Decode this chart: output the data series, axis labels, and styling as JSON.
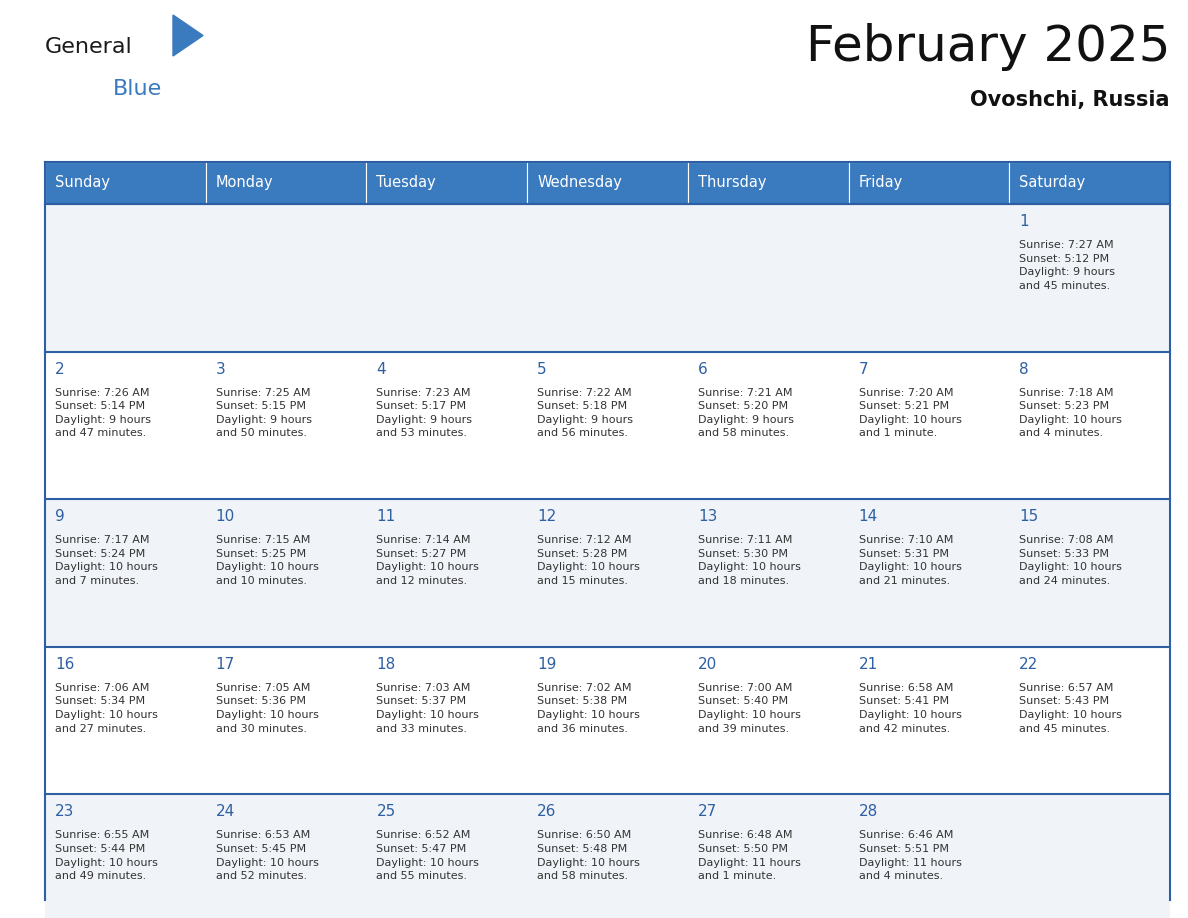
{
  "title": "February 2025",
  "subtitle": "Ovoshchi, Russia",
  "header_color": "#3a7abf",
  "header_text_color": "#ffffff",
  "cell_bg_even": "#f0f4f8",
  "cell_bg_odd": "#ffffff",
  "border_color": "#2e5fa3",
  "day_number_color": "#2e5fa3",
  "text_color": "#333333",
  "days_of_week": [
    "Sunday",
    "Monday",
    "Tuesday",
    "Wednesday",
    "Thursday",
    "Friday",
    "Saturday"
  ],
  "weeks": [
    [
      {
        "day": null,
        "info": null
      },
      {
        "day": null,
        "info": null
      },
      {
        "day": null,
        "info": null
      },
      {
        "day": null,
        "info": null
      },
      {
        "day": null,
        "info": null
      },
      {
        "day": null,
        "info": null
      },
      {
        "day": 1,
        "info": "Sunrise: 7:27 AM\nSunset: 5:12 PM\nDaylight: 9 hours\nand 45 minutes."
      }
    ],
    [
      {
        "day": 2,
        "info": "Sunrise: 7:26 AM\nSunset: 5:14 PM\nDaylight: 9 hours\nand 47 minutes."
      },
      {
        "day": 3,
        "info": "Sunrise: 7:25 AM\nSunset: 5:15 PM\nDaylight: 9 hours\nand 50 minutes."
      },
      {
        "day": 4,
        "info": "Sunrise: 7:23 AM\nSunset: 5:17 PM\nDaylight: 9 hours\nand 53 minutes."
      },
      {
        "day": 5,
        "info": "Sunrise: 7:22 AM\nSunset: 5:18 PM\nDaylight: 9 hours\nand 56 minutes."
      },
      {
        "day": 6,
        "info": "Sunrise: 7:21 AM\nSunset: 5:20 PM\nDaylight: 9 hours\nand 58 minutes."
      },
      {
        "day": 7,
        "info": "Sunrise: 7:20 AM\nSunset: 5:21 PM\nDaylight: 10 hours\nand 1 minute."
      },
      {
        "day": 8,
        "info": "Sunrise: 7:18 AM\nSunset: 5:23 PM\nDaylight: 10 hours\nand 4 minutes."
      }
    ],
    [
      {
        "day": 9,
        "info": "Sunrise: 7:17 AM\nSunset: 5:24 PM\nDaylight: 10 hours\nand 7 minutes."
      },
      {
        "day": 10,
        "info": "Sunrise: 7:15 AM\nSunset: 5:25 PM\nDaylight: 10 hours\nand 10 minutes."
      },
      {
        "day": 11,
        "info": "Sunrise: 7:14 AM\nSunset: 5:27 PM\nDaylight: 10 hours\nand 12 minutes."
      },
      {
        "day": 12,
        "info": "Sunrise: 7:12 AM\nSunset: 5:28 PM\nDaylight: 10 hours\nand 15 minutes."
      },
      {
        "day": 13,
        "info": "Sunrise: 7:11 AM\nSunset: 5:30 PM\nDaylight: 10 hours\nand 18 minutes."
      },
      {
        "day": 14,
        "info": "Sunrise: 7:10 AM\nSunset: 5:31 PM\nDaylight: 10 hours\nand 21 minutes."
      },
      {
        "day": 15,
        "info": "Sunrise: 7:08 AM\nSunset: 5:33 PM\nDaylight: 10 hours\nand 24 minutes."
      }
    ],
    [
      {
        "day": 16,
        "info": "Sunrise: 7:06 AM\nSunset: 5:34 PM\nDaylight: 10 hours\nand 27 minutes."
      },
      {
        "day": 17,
        "info": "Sunrise: 7:05 AM\nSunset: 5:36 PM\nDaylight: 10 hours\nand 30 minutes."
      },
      {
        "day": 18,
        "info": "Sunrise: 7:03 AM\nSunset: 5:37 PM\nDaylight: 10 hours\nand 33 minutes."
      },
      {
        "day": 19,
        "info": "Sunrise: 7:02 AM\nSunset: 5:38 PM\nDaylight: 10 hours\nand 36 minutes."
      },
      {
        "day": 20,
        "info": "Sunrise: 7:00 AM\nSunset: 5:40 PM\nDaylight: 10 hours\nand 39 minutes."
      },
      {
        "day": 21,
        "info": "Sunrise: 6:58 AM\nSunset: 5:41 PM\nDaylight: 10 hours\nand 42 minutes."
      },
      {
        "day": 22,
        "info": "Sunrise: 6:57 AM\nSunset: 5:43 PM\nDaylight: 10 hours\nand 45 minutes."
      }
    ],
    [
      {
        "day": 23,
        "info": "Sunrise: 6:55 AM\nSunset: 5:44 PM\nDaylight: 10 hours\nand 49 minutes."
      },
      {
        "day": 24,
        "info": "Sunrise: 6:53 AM\nSunset: 5:45 PM\nDaylight: 10 hours\nand 52 minutes."
      },
      {
        "day": 25,
        "info": "Sunrise: 6:52 AM\nSunset: 5:47 PM\nDaylight: 10 hours\nand 55 minutes."
      },
      {
        "day": 26,
        "info": "Sunrise: 6:50 AM\nSunset: 5:48 PM\nDaylight: 10 hours\nand 58 minutes."
      },
      {
        "day": 27,
        "info": "Sunrise: 6:48 AM\nSunset: 5:50 PM\nDaylight: 11 hours\nand 1 minute."
      },
      {
        "day": 28,
        "info": "Sunrise: 6:46 AM\nSunset: 5:51 PM\nDaylight: 11 hours\nand 4 minutes."
      },
      {
        "day": null,
        "info": null
      }
    ]
  ],
  "logo_text_general": "General",
  "logo_text_blue": "Blue",
  "logo_triangle_color": "#3a7abf",
  "logo_general_color": "#1a1a1a"
}
